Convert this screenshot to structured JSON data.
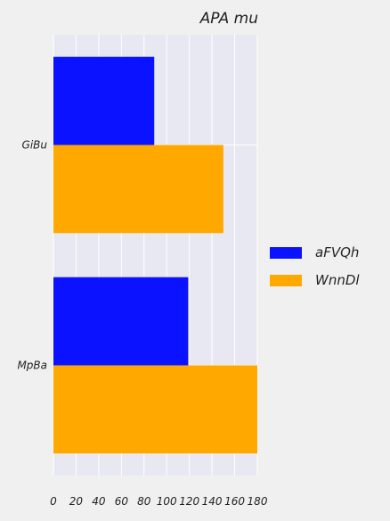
{
  "chart_data": {
    "type": "bar",
    "orientation": "horizontal",
    "title": "APA mu",
    "xlabel": "",
    "ylabel": "",
    "categories": [
      "GiBu",
      "MpBa"
    ],
    "series": [
      {
        "name": "aFVQh",
        "values": [
          89,
          119
        ],
        "color": "#0a12ff"
      },
      {
        "name": "WnnDl",
        "values": [
          150,
          180
        ],
        "color": "#ffa800"
      }
    ],
    "xlim": [
      0,
      180
    ],
    "xticks": [
      0,
      20,
      40,
      60,
      80,
      100,
      120,
      140,
      160,
      180
    ],
    "grid": true,
    "legend_position": "right",
    "colors": {
      "plot_background": "#e8e8f2",
      "page_background": "#f0f0f0",
      "grid": "#ffffff"
    }
  }
}
